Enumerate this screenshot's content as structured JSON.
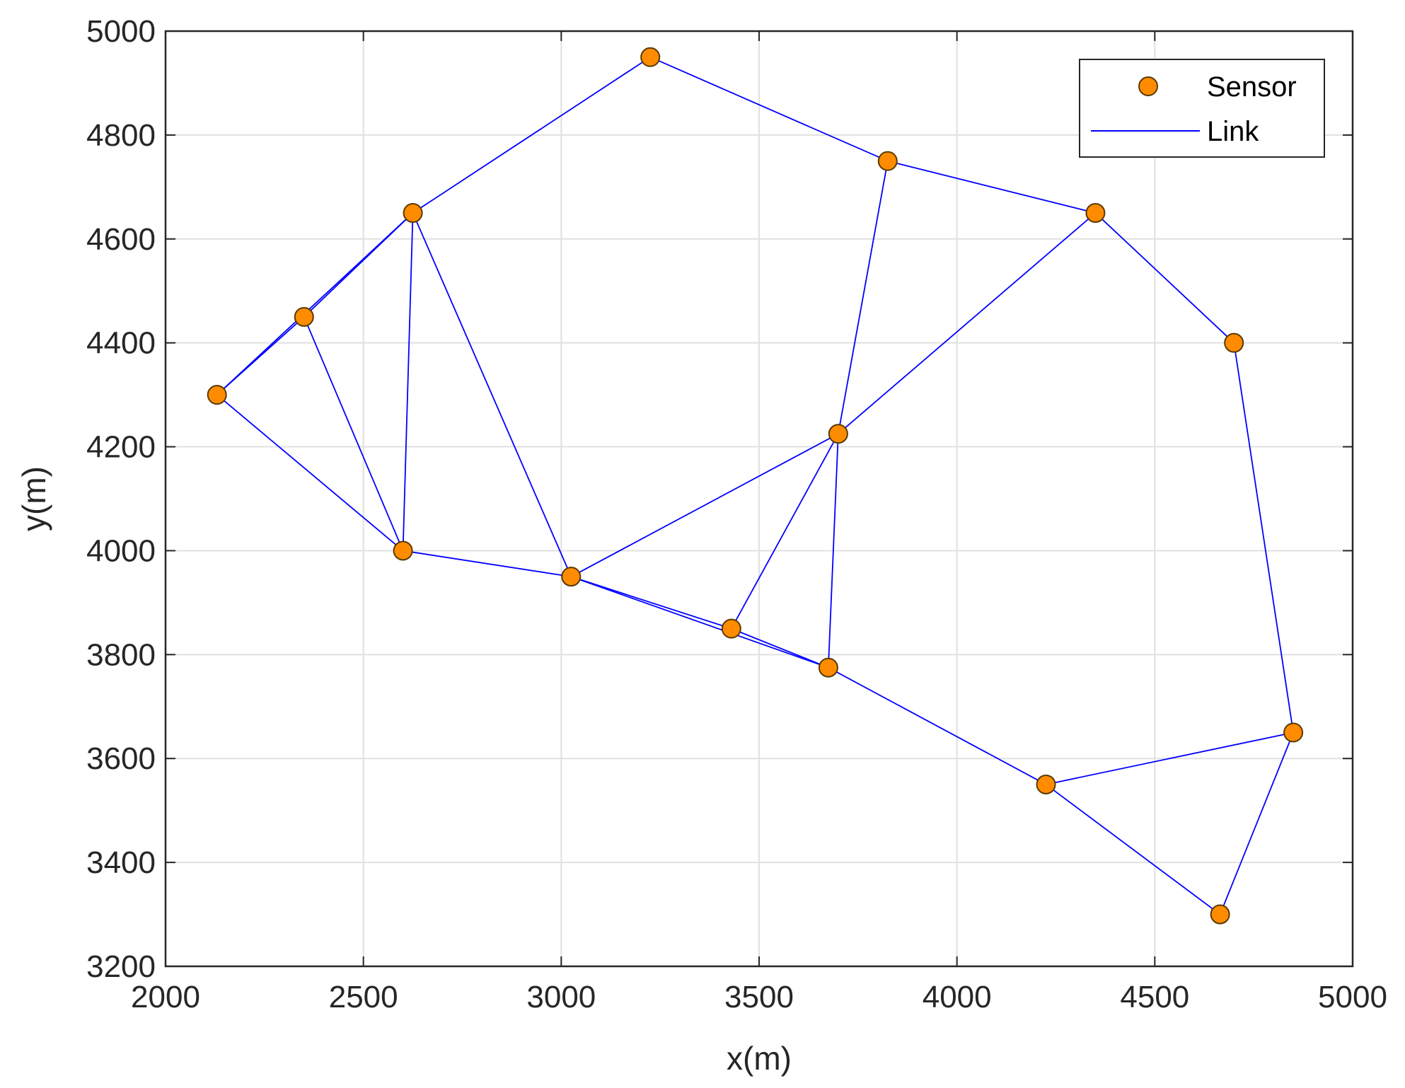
{
  "chart_data": {
    "type": "scatter",
    "xlabel": "x(m)",
    "ylabel": "y(m)",
    "xlim": [
      2000,
      5000
    ],
    "ylim": [
      3200,
      5000
    ],
    "xticks": [
      2000,
      2500,
      3000,
      3500,
      4000,
      4500,
      5000
    ],
    "yticks": [
      3200,
      3400,
      3600,
      3800,
      4000,
      4200,
      4400,
      4600,
      4800,
      5000
    ],
    "grid": true,
    "legend_position": "top-right",
    "series": [
      {
        "name": "Sensor",
        "kind": "marker",
        "color": "#ff8c00",
        "edge_color": "#5a3a00",
        "points": [
          {
            "x": 2130,
            "y": 4300
          },
          {
            "x": 2350,
            "y": 4450
          },
          {
            "x": 2600,
            "y": 4000
          },
          {
            "x": 2625,
            "y": 4650
          },
          {
            "x": 3025,
            "y": 3950
          },
          {
            "x": 3225,
            "y": 4950
          },
          {
            "x": 3430,
            "y": 3850
          },
          {
            "x": 3675,
            "y": 3775
          },
          {
            "x": 3700,
            "y": 4225
          },
          {
            "x": 3825,
            "y": 4750
          },
          {
            "x": 4225,
            "y": 3550
          },
          {
            "x": 4350,
            "y": 4650
          },
          {
            "x": 4665,
            "y": 3300
          },
          {
            "x": 4700,
            "y": 4400
          },
          {
            "x": 4850,
            "y": 3650
          }
        ]
      },
      {
        "name": "Link",
        "kind": "line",
        "color": "#0000ff",
        "links": [
          [
            2130,
            4300,
            2350,
            4450
          ],
          [
            2130,
            4300,
            2625,
            4650
          ],
          [
            2350,
            4450,
            2625,
            4650
          ],
          [
            2130,
            4300,
            2600,
            4000
          ],
          [
            2350,
            4450,
            2600,
            4000
          ],
          [
            2625,
            4650,
            2600,
            4000
          ],
          [
            2625,
            4650,
            3225,
            4950
          ],
          [
            2625,
            4650,
            3025,
            3950
          ],
          [
            2600,
            4000,
            3025,
            3950
          ],
          [
            3025,
            3950,
            3430,
            3850
          ],
          [
            3025,
            3950,
            3675,
            3775
          ],
          [
            3430,
            3850,
            3675,
            3775
          ],
          [
            3025,
            3950,
            3700,
            4225
          ],
          [
            3430,
            3850,
            3700,
            4225
          ],
          [
            3675,
            3775,
            3700,
            4225
          ],
          [
            3700,
            4225,
            3825,
            4750
          ],
          [
            3700,
            4225,
            4350,
            4650
          ],
          [
            3225,
            4950,
            3825,
            4750
          ],
          [
            3825,
            4750,
            4350,
            4650
          ],
          [
            4350,
            4650,
            4700,
            4400
          ],
          [
            4700,
            4400,
            4850,
            3650
          ],
          [
            3675,
            3775,
            4225,
            3550
          ],
          [
            4225,
            3550,
            4850,
            3650
          ],
          [
            4225,
            3550,
            4665,
            3300
          ],
          [
            4665,
            3300,
            4850,
            3650
          ]
        ]
      }
    ]
  }
}
